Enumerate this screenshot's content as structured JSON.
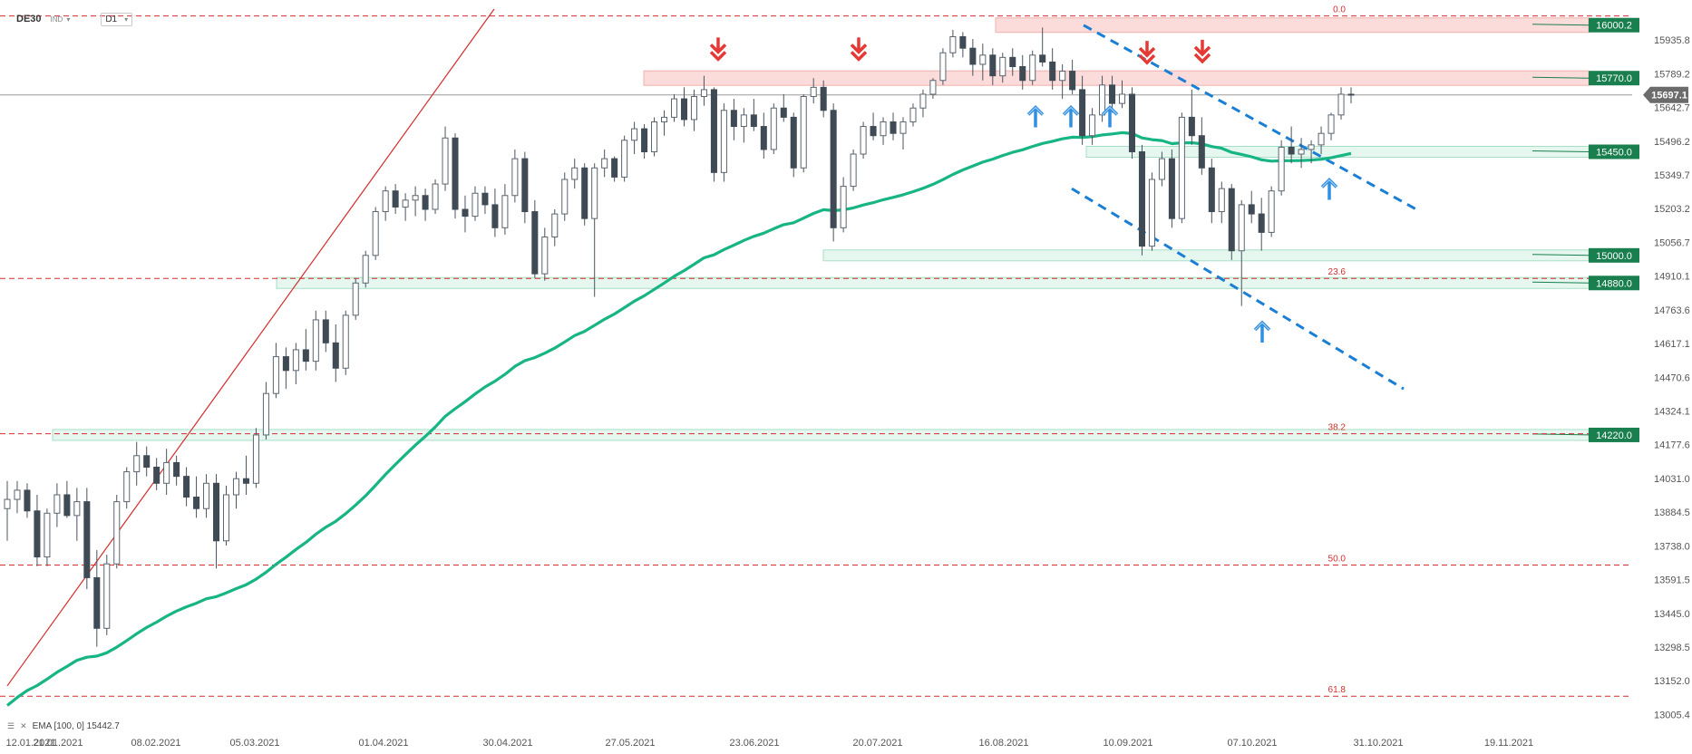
{
  "header": {
    "symbol": "DE30",
    "market": "IND",
    "timeframe": "D1"
  },
  "legend": {
    "settings_icon": "bars-icon",
    "close_icon": "close-icon",
    "text": "EMA [100, 0] 15442.7"
  },
  "colors": {
    "bull": "#ffffff",
    "bear": "#3f4a55",
    "ema": "#17b584",
    "resistance_fill": "#fbd9d6",
    "support_fill": "#e4f7ef",
    "fib": "#d32f2f",
    "channel": "#1a7fd4",
    "badge": "#1a7f4e",
    "arrow_down": "#e53935",
    "arrow_up": "#2f8fe0"
  },
  "chart_data": {
    "type": "candlestick",
    "title": "DE30",
    "ylim": [
      12960,
      16070
    ],
    "x_range": [
      "2021-01-08",
      "2021-11-28"
    ],
    "y_ticks": [
      "15935.8",
      "15789.2",
      "15642.7",
      "15496.2",
      "15349.7",
      "15203.2",
      "15056.7",
      "14910.1",
      "14763.6",
      "14617.1",
      "14470.6",
      "14324.1",
      "14177.6",
      "14031.0",
      "13884.5",
      "13738.0",
      "13591.5",
      "13445.0",
      "13298.5",
      "13152.0",
      "13005.4"
    ],
    "x_ticks": [
      "12.01.2021",
      "21.01.2021",
      "08.02.2021",
      "05.03.2021",
      "01.04.2021",
      "30.04.2021",
      "27.05.2021",
      "23.06.2021",
      "20.07.2021",
      "16.08.2021",
      "10.09.2021",
      "07.10.2021",
      "31.10.2021",
      "19.11.2021"
    ],
    "last_price": "15697.1",
    "reference_price": 15697.1,
    "candles_approximate": [
      [
        13900,
        14020,
        13760,
        13940
      ],
      [
        13940,
        14020,
        13880,
        13980
      ],
      [
        13980,
        14010,
        13860,
        13890
      ],
      [
        13890,
        13960,
        13650,
        13690
      ],
      [
        13690,
        13900,
        13650,
        13880
      ],
      [
        13880,
        14010,
        13820,
        13960
      ],
      [
        13960,
        14020,
        13860,
        13870
      ],
      [
        13870,
        13990,
        13760,
        13930
      ],
      [
        13930,
        13990,
        13550,
        13600
      ],
      [
        13600,
        13720,
        13300,
        13380
      ],
      [
        13380,
        13700,
        13350,
        13660
      ],
      [
        13660,
        13960,
        13640,
        13930
      ],
      [
        13930,
        14080,
        13900,
        14060
      ],
      [
        14060,
        14190,
        14000,
        14130
      ],
      [
        14130,
        14170,
        14040,
        14080
      ],
      [
        14080,
        14120,
        13980,
        14010
      ],
      [
        14010,
        14160,
        13960,
        14100
      ],
      [
        14100,
        14130,
        14000,
        14040
      ],
      [
        14040,
        14080,
        13910,
        13950
      ],
      [
        13950,
        14040,
        13860,
        13900
      ],
      [
        13900,
        14050,
        13860,
        14010
      ],
      [
        14010,
        14050,
        13640,
        13760
      ],
      [
        13760,
        14000,
        13740,
        13960
      ],
      [
        13960,
        14060,
        13900,
        14030
      ],
      [
        14030,
        14130,
        13960,
        14010
      ],
      [
        14010,
        14250,
        13990,
        14220
      ],
      [
        14220,
        14450,
        14200,
        14400
      ],
      [
        14400,
        14620,
        14380,
        14560
      ],
      [
        14560,
        14600,
        14420,
        14500
      ],
      [
        14500,
        14620,
        14440,
        14590
      ],
      [
        14590,
        14680,
        14500,
        14540
      ],
      [
        14540,
        14760,
        14500,
        14720
      ],
      [
        14720,
        14760,
        14580,
        14620
      ],
      [
        14620,
        14700,
        14450,
        14510
      ],
      [
        14510,
        14760,
        14480,
        14740
      ],
      [
        14740,
        14900,
        14720,
        14880
      ],
      [
        14880,
        15020,
        14860,
        15000
      ],
      [
        15000,
        15210,
        14980,
        15190
      ],
      [
        15190,
        15300,
        15150,
        15280
      ],
      [
        15280,
        15310,
        15180,
        15210
      ],
      [
        15210,
        15270,
        15150,
        15240
      ],
      [
        15240,
        15300,
        15170,
        15260
      ],
      [
        15260,
        15290,
        15150,
        15200
      ],
      [
        15200,
        15330,
        15180,
        15310
      ],
      [
        15310,
        15560,
        15280,
        15510
      ],
      [
        15510,
        15530,
        15160,
        15200
      ],
      [
        15200,
        15260,
        15100,
        15170
      ],
      [
        15170,
        15300,
        15150,
        15270
      ],
      [
        15270,
        15300,
        15180,
        15220
      ],
      [
        15220,
        15290,
        15080,
        15120
      ],
      [
        15120,
        15310,
        15090,
        15260
      ],
      [
        15260,
        15460,
        15230,
        15420
      ],
      [
        15420,
        15450,
        15140,
        15190
      ],
      [
        15190,
        15240,
        14900,
        14920
      ],
      [
        14920,
        15120,
        14890,
        15080
      ],
      [
        15080,
        15200,
        15040,
        15180
      ],
      [
        15180,
        15360,
        15150,
        15330
      ],
      [
        15330,
        15420,
        15290,
        15380
      ],
      [
        15380,
        15400,
        15130,
        15160
      ],
      [
        15160,
        15400,
        14820,
        15380
      ],
      [
        15380,
        15460,
        15340,
        15420
      ],
      [
        15420,
        15430,
        15320,
        15340
      ],
      [
        15340,
        15520,
        15320,
        15500
      ],
      [
        15500,
        15580,
        15440,
        15550
      ],
      [
        15550,
        15570,
        15420,
        15450
      ],
      [
        15450,
        15600,
        15430,
        15580
      ],
      [
        15580,
        15630,
        15520,
        15600
      ],
      [
        15600,
        15700,
        15580,
        15680
      ],
      [
        15680,
        15730,
        15560,
        15590
      ],
      [
        15590,
        15720,
        15540,
        15690
      ],
      [
        15690,
        15780,
        15650,
        15720
      ],
      [
        15720,
        15730,
        15320,
        15360
      ],
      [
        15360,
        15660,
        15320,
        15630
      ],
      [
        15630,
        15680,
        15500,
        15560
      ],
      [
        15560,
        15640,
        15490,
        15610
      ],
      [
        15610,
        15680,
        15540,
        15560
      ],
      [
        15560,
        15620,
        15420,
        15460
      ],
      [
        15460,
        15660,
        15440,
        15640
      ],
      [
        15640,
        15700,
        15580,
        15600
      ],
      [
        15600,
        15620,
        15340,
        15380
      ],
      [
        15380,
        15700,
        15360,
        15690
      ],
      [
        15690,
        15770,
        15660,
        15730
      ],
      [
        15730,
        15760,
        15600,
        15630
      ],
      [
        15630,
        15660,
        15060,
        15120
      ],
      [
        15120,
        15340,
        15100,
        15300
      ],
      [
        15300,
        15460,
        15280,
        15440
      ],
      [
        15440,
        15580,
        15420,
        15560
      ],
      [
        15560,
        15620,
        15500,
        15520
      ],
      [
        15520,
        15600,
        15480,
        15580
      ],
      [
        15580,
        15620,
        15500,
        15530
      ],
      [
        15530,
        15600,
        15460,
        15580
      ],
      [
        15580,
        15660,
        15560,
        15640
      ],
      [
        15640,
        15720,
        15600,
        15700
      ],
      [
        15700,
        15770,
        15680,
        15760
      ],
      [
        15760,
        15900,
        15740,
        15880
      ],
      [
        15880,
        15980,
        15860,
        15950
      ],
      [
        15950,
        15970,
        15860,
        15900
      ],
      [
        15900,
        15940,
        15780,
        15830
      ],
      [
        15830,
        15920,
        15760,
        15870
      ],
      [
        15870,
        15900,
        15740,
        15780
      ],
      [
        15780,
        15880,
        15750,
        15860
      ],
      [
        15860,
        15900,
        15780,
        15820
      ],
      [
        15820,
        15870,
        15720,
        15760
      ],
      [
        15760,
        15890,
        15740,
        15870
      ],
      [
        15870,
        15990,
        15820,
        15840
      ],
      [
        15840,
        15900,
        15720,
        15760
      ],
      [
        15760,
        15830,
        15680,
        15800
      ],
      [
        15800,
        15850,
        15700,
        15720
      ],
      [
        15720,
        15780,
        15480,
        15520
      ],
      [
        15520,
        15640,
        15480,
        15610
      ],
      [
        15610,
        15780,
        15580,
        15740
      ],
      [
        15740,
        15780,
        15620,
        15660
      ],
      [
        15660,
        15760,
        15640,
        15700
      ],
      [
        15700,
        15730,
        15420,
        15450
      ],
      [
        15450,
        15480,
        15000,
        15040
      ],
      [
        15040,
        15360,
        15020,
        15330
      ],
      [
        15330,
        15450,
        15300,
        15420
      ],
      [
        15420,
        15460,
        15120,
        15160
      ],
      [
        15160,
        15620,
        15140,
        15600
      ],
      [
        15600,
        15720,
        15480,
        15520
      ],
      [
        15520,
        15600,
        15350,
        15380
      ],
      [
        15380,
        15420,
        15140,
        15190
      ],
      [
        15190,
        15320,
        15140,
        15290
      ],
      [
        15290,
        15310,
        14980,
        15020
      ],
      [
        15020,
        15240,
        14780,
        15220
      ],
      [
        15220,
        15280,
        15140,
        15180
      ],
      [
        15180,
        15250,
        15020,
        15100
      ],
      [
        15100,
        15300,
        15080,
        15280
      ],
      [
        15280,
        15500,
        15260,
        15470
      ],
      [
        15470,
        15560,
        15400,
        15440
      ],
      [
        15440,
        15510,
        15380,
        15460
      ],
      [
        15460,
        15500,
        15400,
        15480
      ],
      [
        15480,
        15560,
        15440,
        15530
      ],
      [
        15530,
        15620,
        15500,
        15610
      ],
      [
        15610,
        15730,
        15590,
        15700
      ],
      [
        15700,
        15730,
        15660,
        15697
      ]
    ],
    "ema_period": 100,
    "ema_value": "15442.7",
    "fibonacci": [
      {
        "label": "0.0",
        "value": 16040
      },
      {
        "label": "23.6",
        "value": 14900
      },
      {
        "label": "38.2",
        "value": 14225
      },
      {
        "label": "50.0",
        "value": 13655
      },
      {
        "label": "61.8",
        "value": 13085
      }
    ],
    "zones": [
      {
        "label": "16000.2",
        "value": 16000.2,
        "type": "resistance"
      },
      {
        "label": "15770.0",
        "value": 15770.0,
        "type": "resistance"
      },
      {
        "label": "15450.0",
        "value": 15450.0,
        "type": "support"
      },
      {
        "label": "15000.0",
        "value": 15000.0,
        "type": "support"
      },
      {
        "label": "14880.0",
        "value": 14880.0,
        "type": "support"
      },
      {
        "label": "14220.0",
        "value": 14220.0,
        "type": "support"
      }
    ]
  }
}
